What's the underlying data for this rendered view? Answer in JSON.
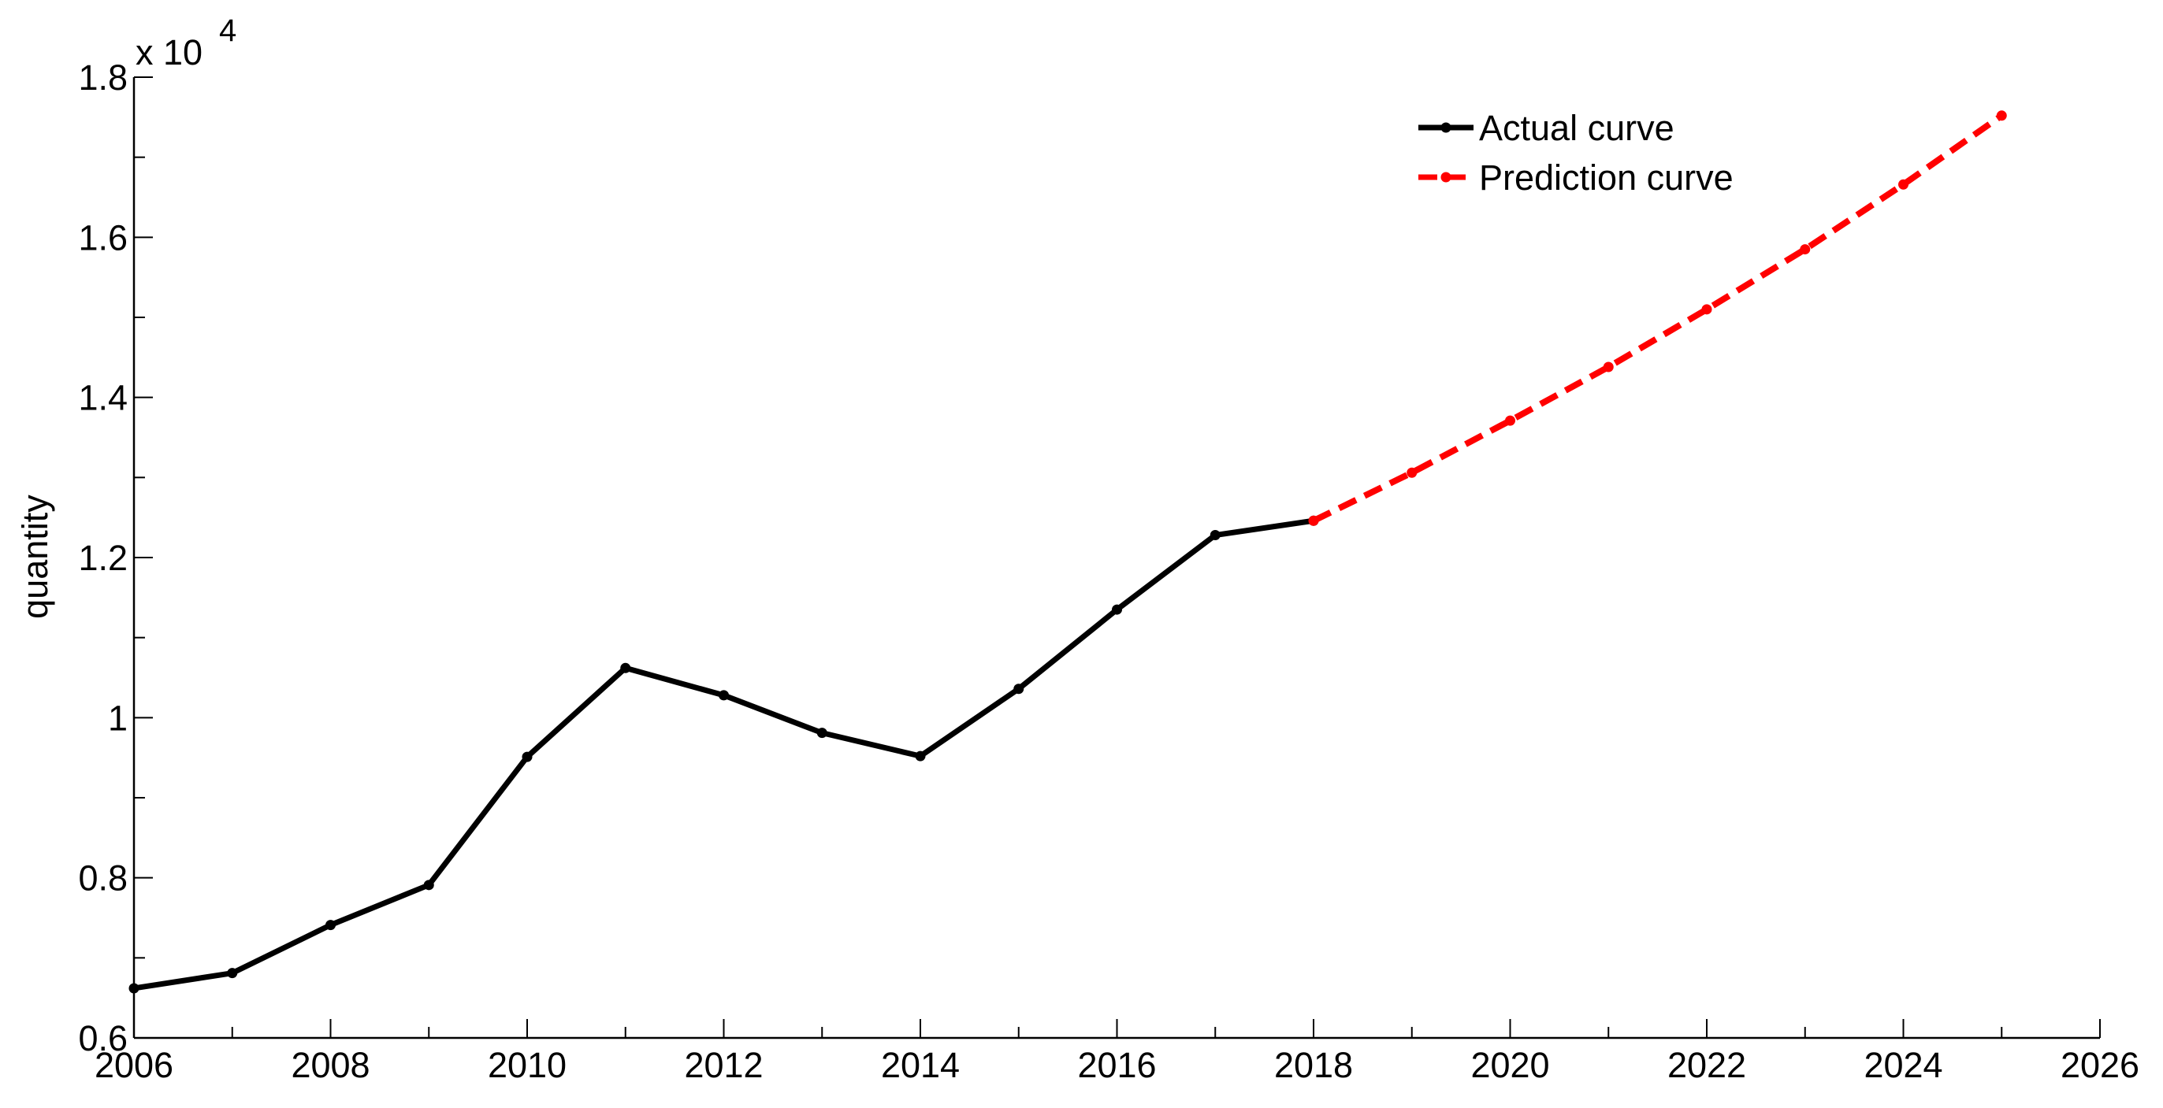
{
  "chart_data": {
    "type": "line",
    "xlabel": "",
    "ylabel": "quantity",
    "y_scale_multiplier": "x 10",
    "y_scale_exponent": "4",
    "xlim": [
      2006,
      2026
    ],
    "ylim": [
      0.6,
      1.8
    ],
    "xticks": [
      2006,
      2008,
      2010,
      2012,
      2014,
      2016,
      2018,
      2020,
      2022,
      2024,
      2026
    ],
    "xtick_labels": [
      "2006",
      "2008",
      "2010",
      "2012",
      "2014",
      "2016",
      "2018",
      "2020",
      "2022",
      "2024",
      "2026"
    ],
    "yticks": [
      0.6,
      0.8,
      1.0,
      1.2,
      1.4,
      1.6,
      1.8
    ],
    "ytick_labels": [
      "0.6",
      "0.8",
      "1",
      "1.2",
      "1.4",
      "1.6",
      "1.8"
    ],
    "grid": false,
    "legend_position": "top-right",
    "series": [
      {
        "name": "Actual curve",
        "color": "#000000",
        "style": "solid",
        "marker": "dot",
        "x": [
          2006,
          2007,
          2008,
          2009,
          2010,
          2011,
          2012,
          2013,
          2014,
          2015,
          2016,
          2017,
          2018
        ],
        "y": [
          0.662,
          0.681,
          0.741,
          0.791,
          0.951,
          1.062,
          1.028,
          0.981,
          0.952,
          1.036,
          1.135,
          1.228,
          1.246
        ]
      },
      {
        "name": "Prediction curve",
        "color": "#ff0000",
        "style": "dashed",
        "marker": "dot",
        "x": [
          2018,
          2019,
          2020,
          2021,
          2022,
          2023,
          2024,
          2025
        ],
        "y": [
          1.246,
          1.306,
          1.371,
          1.438,
          1.51,
          1.585,
          1.666,
          1.752
        ]
      }
    ]
  }
}
